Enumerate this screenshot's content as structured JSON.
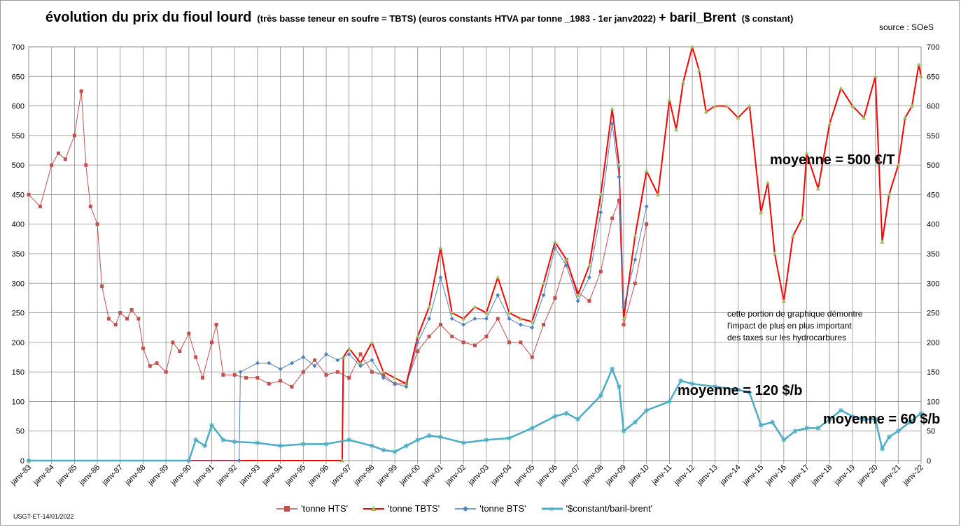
{
  "title": {
    "main": "évolution du prix du fioul lourd",
    "sub": "(très basse teneur en soufre = TBTS) (euros  constants HTVA par tonne _1983 - 1er janv2022)",
    "brent": "+ baril_Brent",
    "brent_sub": "($ constant)"
  },
  "source": "source : SOeS",
  "footer": "USGT-ET-14/01/2022",
  "annotations": {
    "avg_tonne": "moyenne = 500 €/T",
    "avg_brent_1": "moyenne = 120 $/b",
    "avg_brent_2": "moyenne = 60 $/b",
    "note_lines": [
      "cette portion de graphique démontre",
      "l'impact de plus en plus important",
      "des taxes sur  les hydrocarbures"
    ]
  },
  "legend": [
    {
      "label": "'tonne HTS'",
      "color": "#c0504d",
      "marker": "square"
    },
    {
      "label": "'tonne TBTS'",
      "color": "#ff0000",
      "marker": "triangle"
    },
    {
      "label": "'tonne BTS'",
      "color": "#4f81bd",
      "marker": "diamond"
    },
    {
      "label": "'$constant/baril-brent'",
      "color": "#4bacc6",
      "marker": "star"
    }
  ],
  "chart_data": {
    "type": "line",
    "title": "évolution du prix du fioul lourd",
    "categories": [
      "janv-83",
      "janv-84",
      "janv-85",
      "janv-86",
      "janv-87",
      "janv-88",
      "janv-89",
      "janv-90",
      "janv-91",
      "janv-92",
      "janv-93",
      "janv-94",
      "janv-95",
      "janv-96",
      "janv-97",
      "janv-98",
      "janv-99",
      "janv-00",
      "janv-01",
      "janv-02",
      "janv-03",
      "janv-04",
      "janv-05",
      "janv-06",
      "janv-07",
      "janv-08",
      "janv-09",
      "janv-10",
      "janv-11",
      "janv-12",
      "janv-13",
      "janv-14",
      "janv-15",
      "janv-16",
      "janv-17",
      "janv-18",
      "janv-19",
      "janv-20",
      "janv-21",
      "janv-22"
    ],
    "ylim": [
      0,
      700
    ],
    "yticks": [
      0,
      50,
      100,
      150,
      200,
      250,
      300,
      350,
      400,
      450,
      500,
      550,
      600,
      650,
      700
    ],
    "y2ticks": [
      0,
      50,
      100,
      150,
      200,
      250,
      300,
      350,
      400,
      450,
      500,
      550,
      600,
      650,
      700
    ],
    "grid": true,
    "legend_position": "bottom",
    "series": [
      {
        "name": "'tonne HTS'",
        "color": "#c0504d",
        "x": [
          1983.0,
          1983.5,
          1984.0,
          1984.3,
          1984.6,
          1985.0,
          1985.3,
          1985.5,
          1985.7,
          1986.0,
          1986.2,
          1986.5,
          1986.8,
          1987.0,
          1987.3,
          1987.5,
          1987.8,
          1988.0,
          1988.3,
          1988.6,
          1989.0,
          1989.3,
          1989.6,
          1990.0,
          1990.3,
          1990.6,
          1991.0,
          1991.2,
          1991.5,
          1992.0,
          1992.5,
          1993.0,
          1993.5,
          1994.0,
          1994.5,
          1995.0,
          1995.5,
          1996.0,
          1996.5,
          1997.0,
          1997.5,
          1998.0,
          1998.5,
          1999.0,
          1999.5,
          2000.0,
          2000.5,
          2001.0,
          2001.5,
          2002.0,
          2002.5,
          2003.0,
          2003.5,
          2004.0,
          2004.5,
          2005.0,
          2005.5,
          2006.0,
          2006.5,
          2007.0,
          2007.5,
          2008.0,
          2008.5,
          2008.8,
          2009.0,
          2009.5,
          2010.0
        ],
        "y": [
          450,
          430,
          500,
          520,
          510,
          550,
          625,
          500,
          430,
          400,
          295,
          240,
          230,
          250,
          240,
          255,
          240,
          190,
          160,
          165,
          150,
          200,
          185,
          215,
          175,
          140,
          200,
          230,
          145,
          145,
          140,
          140,
          130,
          135,
          125,
          150,
          170,
          145,
          150,
          140,
          180,
          150,
          145,
          130,
          130,
          185,
          210,
          230,
          210,
          200,
          195,
          210,
          240,
          200,
          200,
          175,
          230,
          275,
          340,
          285,
          270,
          320,
          410,
          440,
          230,
          300,
          400
        ]
      },
      {
        "name": "'tonne TBTS'",
        "color": "#ff0000",
        "x": [
          1983.0,
          1996.7,
          1996.75,
          1997.0,
          1997.5,
          1998.0,
          1998.5,
          1999.0,
          1999.5,
          2000.0,
          2000.5,
          2001.0,
          2001.5,
          2002.0,
          2002.5,
          2003.0,
          2003.5,
          2004.0,
          2004.5,
          2005.0,
          2005.5,
          2006.0,
          2006.5,
          2007.0,
          2007.5,
          2008.0,
          2008.5,
          2008.8,
          2009.0,
          2009.5,
          2010.0,
          2010.5,
          2011.0,
          2011.3,
          2011.6,
          2012.0,
          2012.3,
          2012.6,
          2013.0,
          2013.5,
          2014.0,
          2014.5,
          2015.0,
          2015.3,
          2015.6,
          2016.0,
          2016.4,
          2016.8,
          2017.0,
          2017.5,
          2018.0,
          2018.5,
          2019.0,
          2019.5,
          2020.0,
          2020.3,
          2020.6,
          2021.0,
          2021.3,
          2021.6,
          2021.9,
          2022.0
        ],
        "y": [
          0,
          0,
          175,
          190,
          165,
          200,
          150,
          140,
          130,
          210,
          260,
          360,
          250,
          240,
          260,
          250,
          310,
          250,
          240,
          235,
          300,
          370,
          340,
          280,
          330,
          450,
          595,
          500,
          240,
          380,
          490,
          450,
          610,
          560,
          640,
          700,
          660,
          590,
          600,
          600,
          580,
          600,
          420,
          470,
          350,
          270,
          380,
          410,
          520,
          460,
          570,
          630,
          600,
          580,
          650,
          370,
          450,
          500,
          580,
          600,
          670,
          650
        ]
      },
      {
        "name": "'tonne BTS'",
        "color": "#4f81bd",
        "x": [
          1983.0,
          1992.2,
          1992.25,
          1993.0,
          1993.5,
          1994.0,
          1994.5,
          1995.0,
          1995.5,
          1996.0,
          1996.5,
          1997.0,
          1997.5,
          1998.0,
          1998.5,
          1999.0,
          1999.5,
          2000.0,
          2000.5,
          2001.0,
          2001.5,
          2002.0,
          2002.5,
          2003.0,
          2003.5,
          2004.0,
          2004.5,
          2005.0,
          2005.5,
          2006.0,
          2006.5,
          2007.0,
          2007.5,
          2008.0,
          2008.5,
          2008.8,
          2009.0,
          2009.5,
          2010.0
        ],
        "y": [
          0,
          0,
          150,
          165,
          165,
          155,
          165,
          175,
          160,
          180,
          170,
          180,
          160,
          170,
          140,
          130,
          125,
          200,
          240,
          310,
          240,
          230,
          240,
          240,
          280,
          240,
          230,
          225,
          280,
          360,
          330,
          270,
          310,
          420,
          570,
          480,
          260,
          340,
          430
        ]
      },
      {
        "name": "'$constant/baril-brent'",
        "color": "#4bacc6",
        "x": [
          1983.0,
          1990.0,
          1990.3,
          1990.7,
          1991.0,
          1991.5,
          1992.0,
          1993.0,
          1994.0,
          1995.0,
          1996.0,
          1997.0,
          1998.0,
          1998.5,
          1999.0,
          1999.5,
          2000.0,
          2000.5,
          2001.0,
          2002.0,
          2003.0,
          2004.0,
          2005.0,
          2006.0,
          2006.5,
          2007.0,
          2008.0,
          2008.5,
          2008.8,
          2009.0,
          2009.5,
          2010.0,
          2011.0,
          2011.5,
          2012.0,
          2013.0,
          2014.0,
          2014.5,
          2015.0,
          2015.5,
          2016.0,
          2016.5,
          2017.0,
          2017.5,
          2018.0,
          2018.5,
          2019.0,
          2019.5,
          2020.0,
          2020.3,
          2020.6,
          2021.0,
          2021.5,
          2022.0
        ],
        "y": [
          0,
          0,
          35,
          25,
          60,
          35,
          32,
          30,
          25,
          28,
          28,
          35,
          25,
          18,
          15,
          25,
          35,
          42,
          40,
          30,
          35,
          38,
          55,
          75,
          80,
          70,
          110,
          155,
          125,
          50,
          65,
          85,
          100,
          135,
          130,
          125,
          120,
          115,
          60,
          65,
          35,
          50,
          55,
          55,
          70,
          85,
          75,
          70,
          70,
          20,
          40,
          50,
          65,
          80
        ]
      }
    ]
  }
}
